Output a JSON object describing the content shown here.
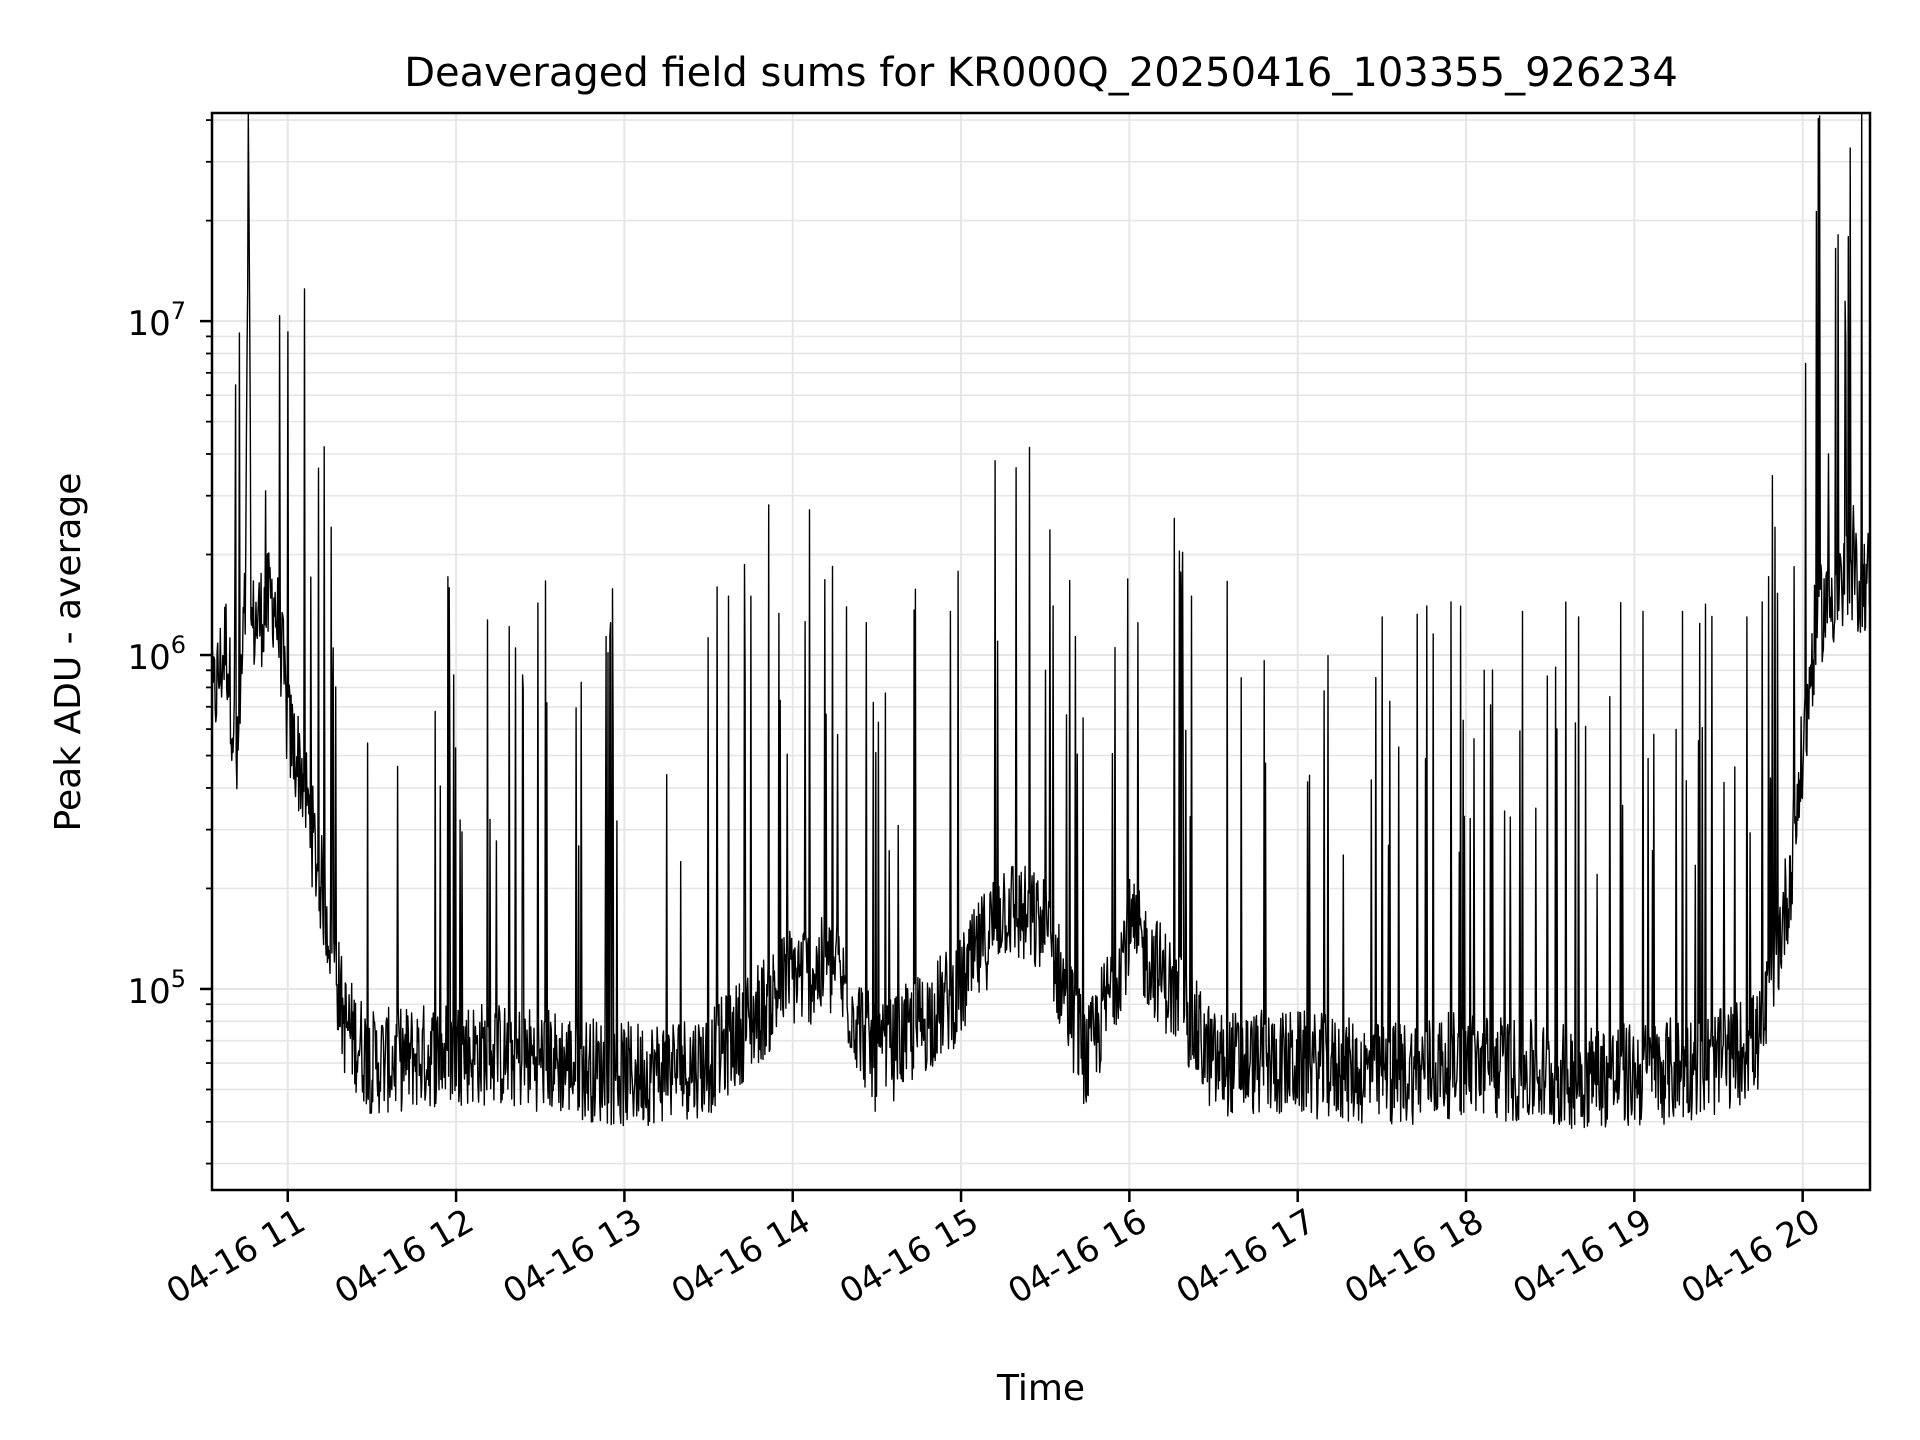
{
  "chart_data": {
    "type": "line",
    "title": "Deaveraged field sums for KR000Q_20250416_103355_926234",
    "xlabel": "Time",
    "ylabel": "Peak ADU - average",
    "yscale": "log",
    "grid": true,
    "colors": {
      "line": "#000000",
      "grid": "#e6e6e6",
      "axes": "#000000"
    },
    "xlim": [
      "04-16 10:33",
      "04-16 20:24"
    ],
    "ylim": [
      25000,
      42000000
    ],
    "x_ticks": [
      {
        "time": "04-16 11:00",
        "label": "04-16 11"
      },
      {
        "time": "04-16 12:00",
        "label": "04-16 12"
      },
      {
        "time": "04-16 13:00",
        "label": "04-16 13"
      },
      {
        "time": "04-16 14:00",
        "label": "04-16 14"
      },
      {
        "time": "04-16 15:00",
        "label": "04-16 15"
      },
      {
        "time": "04-16 16:00",
        "label": "04-16 16"
      },
      {
        "time": "04-16 17:00",
        "label": "04-16 17"
      },
      {
        "time": "04-16 18:00",
        "label": "04-16 18"
      },
      {
        "time": "04-16 19:00",
        "label": "04-16 19"
      },
      {
        "time": "04-16 20:00",
        "label": "04-16 20"
      }
    ],
    "y_ticks": [
      {
        "value": 100000,
        "base": "10",
        "exp": "5"
      },
      {
        "value": 1000000,
        "base": "10",
        "exp": "6"
      },
      {
        "value": 10000000,
        "base": "10",
        "exp": "7"
      }
    ],
    "series": [
      {
        "points": [
          [
            "04-16 10:33",
            700000
          ],
          [
            "04-16 10:38",
            1100000
          ],
          [
            "04-16 10:42",
            450000
          ],
          [
            "04-16 10:45",
            1500000
          ],
          [
            "04-16 10:46",
            30000000
          ],
          [
            "04-16 10:47",
            1200000
          ],
          [
            "04-16 10:50",
            1300000
          ],
          [
            "04-16 10:55",
            1500000
          ],
          [
            "04-16 10:58",
            1000000
          ],
          [
            "04-16 11:00",
            600000
          ],
          [
            "04-16 11:05",
            450000
          ],
          [
            "04-16 11:10",
            250000
          ],
          [
            "04-16 11:15",
            150000
          ],
          [
            "04-16 11:20",
            80000
          ],
          [
            "04-16 11:30",
            60000
          ],
          [
            "04-16 12:00",
            65000
          ],
          [
            "04-16 12:30",
            62000
          ],
          [
            "04-16 13:00",
            55000
          ],
          [
            "04-16 13:30",
            60000
          ],
          [
            "04-16 13:45",
            80000
          ],
          [
            "04-16 14:00",
            110000
          ],
          [
            "04-16 14:15",
            115000
          ],
          [
            "04-16 14:30",
            60000
          ],
          [
            "04-16 15:00",
            100000
          ],
          [
            "04-16 15:15",
            180000
          ],
          [
            "04-16 15:30",
            150000
          ],
          [
            "04-16 15:45",
            60000
          ],
          [
            "04-16 16:00",
            150000
          ],
          [
            "04-16 16:15",
            100000
          ],
          [
            "04-16 16:30",
            60000
          ],
          [
            "04-16 17:00",
            60000
          ],
          [
            "04-16 17:30",
            55000
          ],
          [
            "04-16 18:00",
            60000
          ],
          [
            "04-16 18:30",
            55000
          ],
          [
            "04-16 19:00",
            55000
          ],
          [
            "04-16 19:30",
            60000
          ],
          [
            "04-16 19:45",
            70000
          ],
          [
            "04-16 19:55",
            200000
          ],
          [
            "04-16 20:00",
            500000
          ],
          [
            "04-16 20:05",
            1300000
          ],
          [
            "04-16 20:10",
            1500000
          ],
          [
            "04-16 20:15",
            1600000
          ],
          [
            "04-16 20:24",
            1700000
          ]
        ],
        "spikes": [
          [
            "04-16 10:41",
            2000000
          ],
          [
            "04-16 10:52",
            3100000
          ],
          [
            "04-16 11:16",
            1050000
          ],
          [
            "04-16 12:21",
            1050000
          ],
          [
            "04-16 12:55",
            1250000
          ],
          [
            "04-16 13:33",
            1600000
          ],
          [
            "04-16 13:37",
            1500000
          ],
          [
            "04-16 13:45",
            1500000
          ],
          [
            "04-16 14:26",
            1250000
          ],
          [
            "04-16 14:56",
            1350000
          ],
          [
            "04-16 15:13",
            1100000
          ],
          [
            "04-16 15:30",
            900000
          ],
          [
            "04-16 16:03",
            1250000
          ],
          [
            "04-16 16:22",
            1500000
          ],
          [
            "04-16 17:30",
            1300000
          ],
          [
            "04-16 17:58",
            1400000
          ],
          [
            "04-16 18:20",
            1350000
          ],
          [
            "04-16 18:40",
            1300000
          ],
          [
            "04-16 19:03",
            1350000
          ],
          [
            "04-16 19:17",
            1350000
          ],
          [
            "04-16 19:40",
            1300000
          ],
          [
            "04-16 20:09",
            4000000
          ],
          [
            "04-16 20:18",
            2800000
          ]
        ]
      }
    ]
  }
}
